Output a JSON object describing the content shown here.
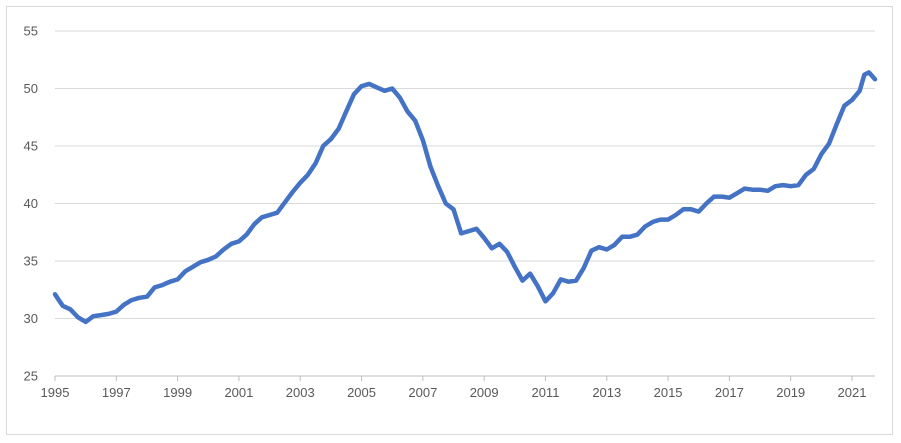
{
  "chart_data": {
    "type": "line",
    "title": "",
    "xlabel": "",
    "ylabel": "",
    "xlim": [
      1995.0,
      2021.75
    ],
    "ylim": [
      25,
      55
    ],
    "y_ticks": [
      25,
      30,
      35,
      40,
      45,
      50,
      55
    ],
    "x_ticks": [
      1995,
      1997,
      1999,
      2001,
      2003,
      2005,
      2007,
      2009,
      2011,
      2013,
      2015,
      2017,
      2019,
      2021
    ],
    "x_tick_labels": [
      "1995",
      "1997",
      "1999",
      "2001",
      "2003",
      "2005",
      "2007",
      "2009",
      "2011",
      "2013",
      "2015",
      "2017",
      "2019",
      "2021"
    ],
    "y_tick_labels": [
      "25",
      "30",
      "35",
      "40",
      "45",
      "50",
      "55"
    ],
    "grid": "horizontal",
    "legend": "none",
    "series_color": "#4472c4",
    "series": [
      {
        "x": [
          1995.0,
          1995.1,
          1995.25,
          1995.5,
          1995.75,
          1996.0,
          1996.25,
          1996.5,
          1996.75,
          1997.0,
          1997.25,
          1997.5,
          1997.75,
          1998.0,
          1998.25,
          1998.5,
          1998.75,
          1999.0,
          1999.25,
          1999.5,
          1999.75,
          2000.0,
          2000.25,
          2000.5,
          2000.75,
          2001.0,
          2001.25,
          2001.5,
          2001.75,
          2002.0,
          2002.25,
          2002.5,
          2002.75,
          2003.0,
          2003.25,
          2003.5,
          2003.75,
          2004.0,
          2004.25,
          2004.5,
          2004.75,
          2005.0,
          2005.25,
          2005.5,
          2005.75,
          2006.0,
          2006.25,
          2006.5,
          2006.75,
          2007.0,
          2007.25,
          2007.5,
          2007.75,
          2008.0,
          2008.25,
          2008.5,
          2008.75,
          2009.0,
          2009.25,
          2009.5,
          2009.75,
          2010.0,
          2010.25,
          2010.5,
          2010.75,
          2011.0,
          2011.25,
          2011.5,
          2011.75,
          2012.0,
          2012.25,
          2012.5,
          2012.75,
          2013.0,
          2013.25,
          2013.5,
          2013.75,
          2014.0,
          2014.25,
          2014.5,
          2014.75,
          2015.0,
          2015.25,
          2015.5,
          2015.75,
          2016.0,
          2016.25,
          2016.5,
          2016.75,
          2017.0,
          2017.25,
          2017.5,
          2017.75,
          2018.0,
          2018.25,
          2018.5,
          2018.75,
          2019.0,
          2019.25,
          2019.5,
          2019.75,
          2020.0,
          2020.25,
          2020.5,
          2020.75,
          2021.0,
          2021.25,
          2021.4,
          2021.55,
          2021.75
        ],
        "y": [
          32.1,
          31.7,
          31.1,
          30.8,
          30.1,
          29.7,
          30.2,
          30.3,
          30.4,
          30.6,
          31.2,
          31.6,
          31.8,
          31.9,
          32.7,
          32.9,
          33.2,
          33.4,
          34.1,
          34.5,
          34.9,
          35.1,
          35.4,
          36.0,
          36.5,
          36.7,
          37.3,
          38.2,
          38.8,
          39.0,
          39.2,
          40.1,
          41.0,
          41.8,
          42.5,
          43.5,
          45.0,
          45.6,
          46.5,
          48.0,
          49.5,
          50.2,
          50.4,
          50.1,
          49.8,
          50.0,
          49.2,
          48.0,
          47.2,
          45.5,
          43.2,
          41.5,
          40.0,
          39.5,
          37.4,
          37.6,
          37.8,
          37.0,
          36.1,
          36.5,
          35.8,
          34.5,
          33.3,
          33.9,
          32.8,
          31.5,
          32.2,
          33.4,
          33.2,
          33.3,
          34.4,
          35.9,
          36.2,
          36.0,
          36.4,
          37.1,
          37.1,
          37.3,
          38.0,
          38.4,
          38.6,
          38.6,
          39.0,
          39.5,
          39.5,
          39.3,
          40.0,
          40.6,
          40.6,
          40.5,
          40.9,
          41.3,
          41.2,
          41.2,
          41.1,
          41.5,
          41.6,
          41.5,
          41.6,
          42.5,
          43.0,
          44.3,
          45.2,
          46.9,
          48.5,
          49.0,
          49.8,
          51.2,
          51.4,
          50.8
        ]
      }
    ]
  }
}
